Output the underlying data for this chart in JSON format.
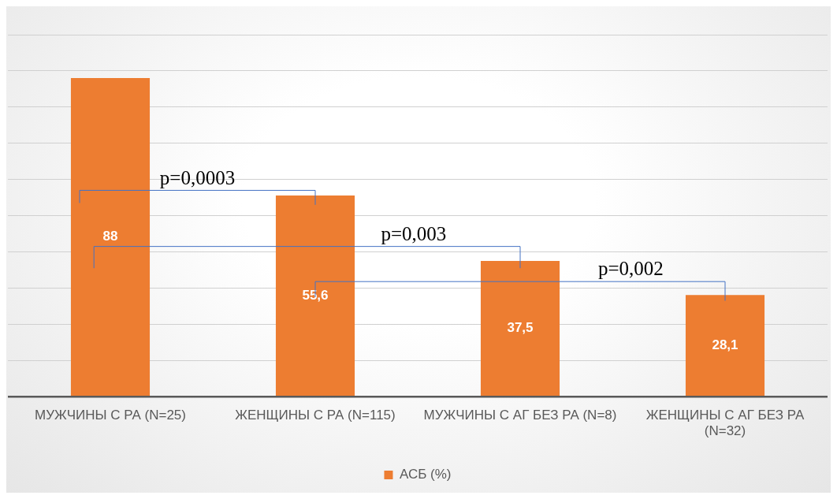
{
  "chart_data": {
    "type": "bar",
    "categories": [
      "МУЖЧИНЫ С РА (N=25)",
      "ЖЕНЩИНЫ С РА (N=115)",
      "МУЖЧИНЫ С АГ БЕЗ РА (N=8)",
      "ЖЕНЩИНЫ С АГ БЕЗ РА (N=32)"
    ],
    "series": [
      {
        "name": "АСБ (%)",
        "color": "#ed7d31",
        "values": [
          88,
          55.6,
          37.5,
          28.1
        ],
        "value_labels": [
          "88",
          "55,6",
          "37,5",
          "28,1"
        ]
      }
    ],
    "ylim": [
      0,
      100
    ],
    "yticks": [
      {
        "value": 0,
        "label": null
      },
      {
        "value": 10,
        "label": null
      },
      {
        "value": 20,
        "label": null
      },
      {
        "value": 30,
        "label": null
      },
      {
        "value": 40,
        "label": null
      },
      {
        "value": 50,
        "label": null
      },
      {
        "value": 60,
        "label": null
      },
      {
        "value": 70,
        "label": null
      },
      {
        "value": 80,
        "label": null
      },
      {
        "value": 90,
        "label": null
      },
      {
        "value": 100,
        "label": null
      }
    ],
    "tick_labels": "x",
    "grid": "y",
    "legend": "bottom",
    "annotations": [
      "p=0,0003",
      "p=0,003",
      "p=0,002"
    ]
  }
}
